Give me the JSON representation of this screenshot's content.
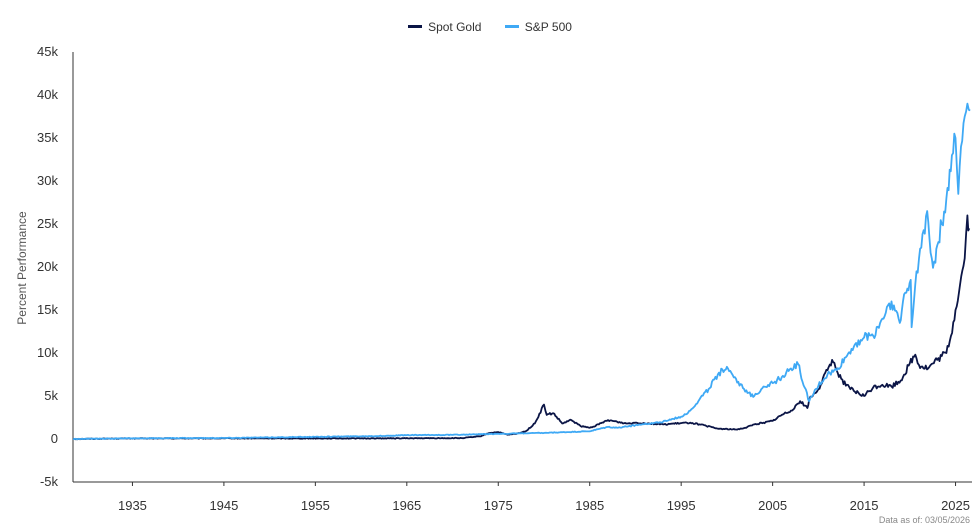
{
  "chart_data": {
    "type": "line",
    "title": "",
    "ylabel": "Percent Performance",
    "xlabel": "",
    "footnote": "Data as of: 03/05/2026",
    "ylim": [
      -5000,
      45000
    ],
    "xlim": [
      1928.5,
      2026.8
    ],
    "y_ticks": [
      -5000,
      0,
      5000,
      10000,
      15000,
      20000,
      25000,
      30000,
      35000,
      40000,
      45000
    ],
    "y_tick_labels": [
      "-5k",
      "0",
      "5k",
      "10k",
      "15k",
      "20k",
      "25k",
      "30k",
      "35k",
      "40k",
      "45k"
    ],
    "x_ticks": [
      1935,
      1945,
      1955,
      1965,
      1975,
      1985,
      1995,
      2005,
      2015,
      2025
    ],
    "x_tick_labels": [
      "1935",
      "1945",
      "1955",
      "1965",
      "1975",
      "1985",
      "1995",
      "2005",
      "2015",
      "2025"
    ],
    "legend_position": "top-center",
    "series": [
      {
        "name": "Spot Gold",
        "color": "#0b1546",
        "points": [
          [
            1928.5,
            0
          ],
          [
            1934,
            60
          ],
          [
            1940,
            70
          ],
          [
            1950,
            70
          ],
          [
            1960,
            70
          ],
          [
            1968,
            90
          ],
          [
            1971,
            100
          ],
          [
            1973,
            300
          ],
          [
            1974,
            700
          ],
          [
            1975,
            800
          ],
          [
            1976,
            500
          ],
          [
            1977,
            600
          ],
          [
            1978,
            900
          ],
          [
            1979,
            1800
          ],
          [
            1980,
            4000
          ],
          [
            1980.3,
            2800
          ],
          [
            1981,
            3000
          ],
          [
            1982,
            1800
          ],
          [
            1983,
            2200
          ],
          [
            1984,
            1500
          ],
          [
            1985,
            1300
          ],
          [
            1986,
            1700
          ],
          [
            1987,
            2200
          ],
          [
            1988,
            2000
          ],
          [
            1989,
            1800
          ],
          [
            1990,
            1900
          ],
          [
            1993,
            1700
          ],
          [
            1996,
            1900
          ],
          [
            1997,
            1700
          ],
          [
            1999,
            1200
          ],
          [
            2001,
            1100
          ],
          [
            2002,
            1300
          ],
          [
            2003,
            1700
          ],
          [
            2004,
            1900
          ],
          [
            2005,
            2100
          ],
          [
            2006,
            2800
          ],
          [
            2007,
            3300
          ],
          [
            2008,
            4400
          ],
          [
            2008.8,
            3600
          ],
          [
            2009,
            4600
          ],
          [
            2010,
            5800
          ],
          [
            2011,
            8000
          ],
          [
            2011.5,
            9200
          ],
          [
            2012,
            8000
          ],
          [
            2013,
            6200
          ],
          [
            2014,
            5500
          ],
          [
            2015,
            5000
          ],
          [
            2016,
            6000
          ],
          [
            2017,
            6300
          ],
          [
            2018,
            6100
          ],
          [
            2019,
            6800
          ],
          [
            2020,
            8800
          ],
          [
            2020.6,
            9800
          ],
          [
            2021,
            8600
          ],
          [
            2022,
            8200
          ],
          [
            2023,
            9200
          ],
          [
            2024,
            10000
          ],
          [
            2024.5,
            12000
          ],
          [
            2025,
            15000
          ],
          [
            2025.5,
            18000
          ],
          [
            2026,
            21000
          ],
          [
            2026.3,
            26000
          ],
          [
            2026.5,
            24500
          ]
        ]
      },
      {
        "name": "S&P 500",
        "color": "#3fa9f5",
        "points": [
          [
            1928.5,
            0
          ],
          [
            1935,
            80
          ],
          [
            1945,
            120
          ],
          [
            1955,
            250
          ],
          [
            1962,
            350
          ],
          [
            1965,
            450
          ],
          [
            1970,
            480
          ],
          [
            1973,
            550
          ],
          [
            1975,
            600
          ],
          [
            1980,
            700
          ],
          [
            1985,
            900
          ],
          [
            1987,
            1400
          ],
          [
            1988,
            1300
          ],
          [
            1990,
            1600
          ],
          [
            1993,
            2000
          ],
          [
            1995,
            2600
          ],
          [
            1996,
            3300
          ],
          [
            1997,
            4600
          ],
          [
            1998,
            5800
          ],
          [
            1999,
            7500
          ],
          [
            2000,
            8400
          ],
          [
            2001,
            7000
          ],
          [
            2002,
            5500
          ],
          [
            2003,
            5000
          ],
          [
            2004,
            6100
          ],
          [
            2005,
            6500
          ],
          [
            2006,
            7200
          ],
          [
            2007,
            8200
          ],
          [
            2007.8,
            8700
          ],
          [
            2008.5,
            6000
          ],
          [
            2009,
            4400
          ],
          [
            2010,
            6200
          ],
          [
            2011,
            7500
          ],
          [
            2012,
            8000
          ],
          [
            2013,
            9500
          ],
          [
            2014,
            11000
          ],
          [
            2015,
            11800
          ],
          [
            2016,
            12000
          ],
          [
            2017,
            14000
          ],
          [
            2018,
            16000
          ],
          [
            2018.9,
            13500
          ],
          [
            2019.5,
            17000
          ],
          [
            2020.1,
            18500
          ],
          [
            2020.2,
            13000
          ],
          [
            2020.6,
            18000
          ],
          [
            2021,
            21000
          ],
          [
            2021.9,
            26500
          ],
          [
            2022.4,
            21000
          ],
          [
            2022.8,
            20500
          ],
          [
            2023,
            22500
          ],
          [
            2023.5,
            25000
          ],
          [
            2024,
            28000
          ],
          [
            2024.6,
            33000
          ],
          [
            2025,
            35000
          ],
          [
            2025.3,
            28500
          ],
          [
            2025.6,
            34000
          ],
          [
            2026,
            37500
          ],
          [
            2026.3,
            39000
          ],
          [
            2026.6,
            38200
          ]
        ]
      }
    ]
  }
}
